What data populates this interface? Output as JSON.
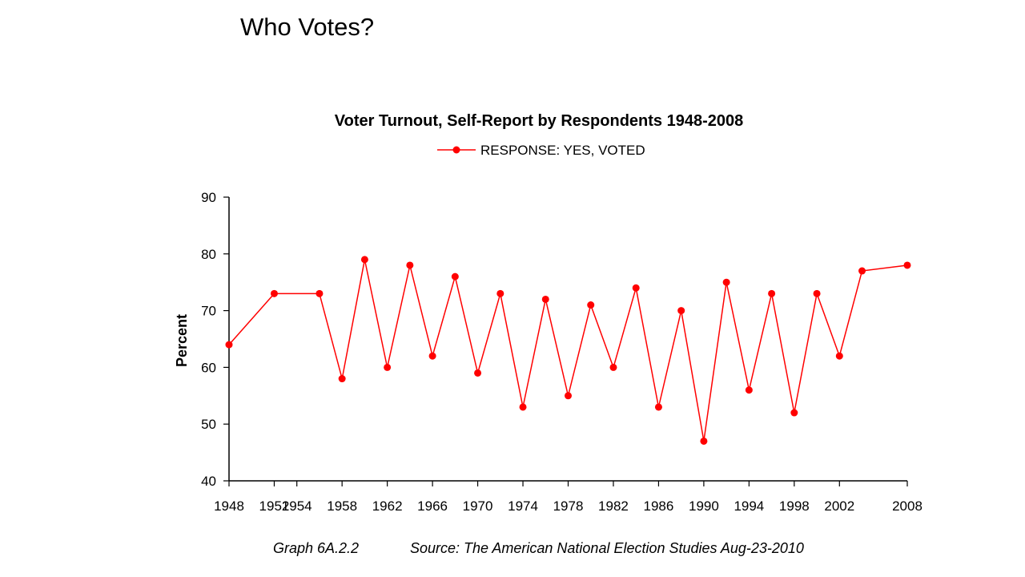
{
  "slide": {
    "title": "Who Votes?"
  },
  "chart_data": {
    "type": "line",
    "title": "Voter Turnout, Self-Report by Respondents 1948-2008",
    "ylabel": "Percent",
    "xlabel": "",
    "ylim": [
      40,
      90
    ],
    "yticks": [
      40,
      50,
      60,
      70,
      80,
      90
    ],
    "xlim": [
      1948,
      2008
    ],
    "xticks": [
      1948,
      1952,
      1954,
      1958,
      1962,
      1966,
      1970,
      1974,
      1978,
      1982,
      1986,
      1990,
      1994,
      1998,
      2002,
      2008
    ],
    "legend": "top-center",
    "grid": false,
    "series_color": "#ff0000",
    "series": [
      {
        "name": "RESPONSE: YES, VOTED",
        "x": [
          1948,
          1952,
          1956,
          1958,
          1960,
          1962,
          1964,
          1966,
          1968,
          1970,
          1972,
          1974,
          1976,
          1978,
          1980,
          1982,
          1984,
          1986,
          1988,
          1990,
          1992,
          1994,
          1996,
          1998,
          2000,
          2002,
          2004,
          2008
        ],
        "values": [
          64,
          73,
          73,
          58,
          79,
          60,
          78,
          62,
          76,
          59,
          73,
          53,
          72,
          55,
          71,
          60,
          74,
          53,
          70,
          47,
          75,
          56,
          73,
          52,
          73,
          62,
          77,
          78
        ]
      }
    ]
  },
  "footer": {
    "graph_id": "Graph 6A.2.2",
    "source": "Source:  The American National Election Studies   Aug-23-2010"
  }
}
